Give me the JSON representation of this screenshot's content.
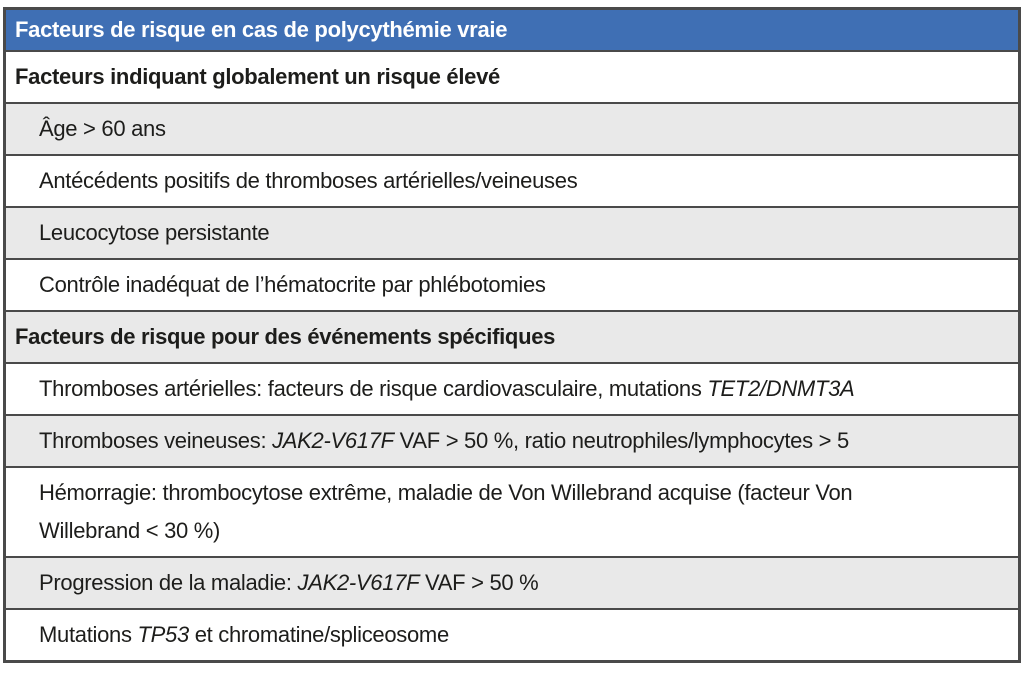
{
  "table": {
    "title": "Facteurs de risque en cas de polycythémie vraie",
    "colors": {
      "header_bg": "#3f6fb4",
      "header_text": "#ffffff",
      "row_bg": "#ffffff",
      "row_shaded_bg": "#e9e9e9",
      "border": "#4a4a4a",
      "text": "#1d1d1b"
    },
    "rows": [
      {
        "type": "section",
        "shaded": false,
        "segments": [
          {
            "text": "Facteurs indiquant globalement un risque élevé",
            "italic": false
          }
        ]
      },
      {
        "type": "item",
        "shaded": true,
        "segments": [
          {
            "text": "Âge > 60 ans",
            "italic": false
          }
        ]
      },
      {
        "type": "item",
        "shaded": false,
        "segments": [
          {
            "text": "Antécédents positifs de thromboses artérielles/veineuses",
            "italic": false
          }
        ]
      },
      {
        "type": "item",
        "shaded": true,
        "segments": [
          {
            "text": "Leucocytose persistante",
            "italic": false
          }
        ]
      },
      {
        "type": "item",
        "shaded": false,
        "segments": [
          {
            "text": "Contrôle inadéquat de l’hématocrite par phlébotomies",
            "italic": false
          }
        ]
      },
      {
        "type": "section",
        "shaded": true,
        "segments": [
          {
            "text": "Facteurs de risque pour des événements spécifiques",
            "italic": false
          }
        ]
      },
      {
        "type": "item",
        "shaded": false,
        "segments": [
          {
            "text": "Thromboses artérielles: facteurs de risque cardiovasculaire, mutations ",
            "italic": false
          },
          {
            "text": "TET2/DNMT3A",
            "italic": true
          }
        ]
      },
      {
        "type": "item",
        "shaded": true,
        "segments": [
          {
            "text": "Thromboses veineuses: ",
            "italic": false
          },
          {
            "text": "JAK2-V617F",
            "italic": true
          },
          {
            "text": " VAF > 50 %, ratio neutrophiles/lymphocytes > 5",
            "italic": false
          }
        ]
      },
      {
        "type": "item",
        "shaded": false,
        "segments": [
          {
            "text": "Hémorragie: thrombocytose extrême, maladie de Von Willebrand acquise (facteur Von\nWillebrand < 30 %)",
            "italic": false
          }
        ]
      },
      {
        "type": "item",
        "shaded": true,
        "segments": [
          {
            "text": "Progression de la maladie: ",
            "italic": false
          },
          {
            "text": "JAK2-V617F",
            "italic": true
          },
          {
            "text": " VAF > 50 %",
            "italic": false
          }
        ]
      },
      {
        "type": "item",
        "shaded": false,
        "segments": [
          {
            "text": "Mutations ",
            "italic": false
          },
          {
            "text": "TP53",
            "italic": true
          },
          {
            "text": " et chromatine/spliceosome",
            "italic": false
          }
        ]
      }
    ]
  }
}
